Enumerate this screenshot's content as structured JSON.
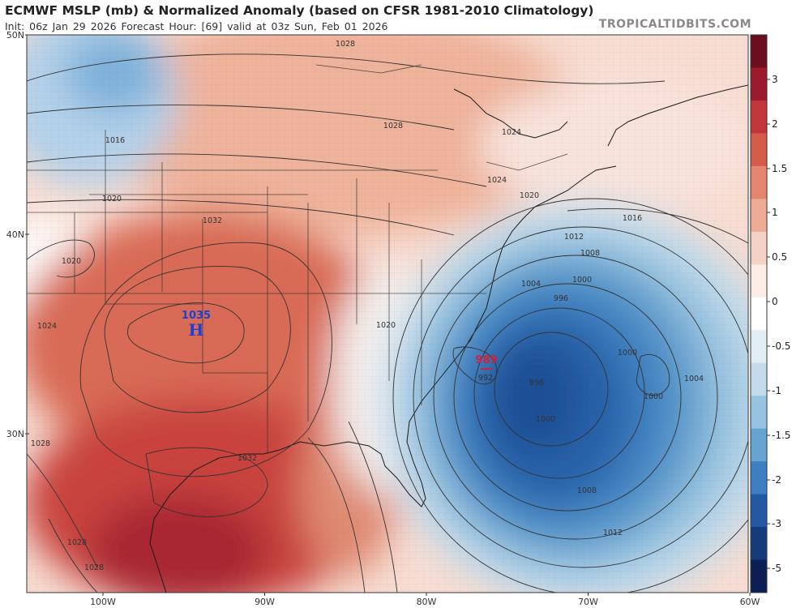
{
  "header": {
    "title": "ECMWF MSLP (mb) & Normalized Anomaly (based on CFSR 1981-2010 Climatology)",
    "subtitle": "Init: 06z Jan 29 2026   Forecast Hour: [69]   valid at 03z Sun, Feb 01 2026",
    "brand": "TROPICALTIDBITS.COM"
  },
  "axes": {
    "lat_labels": [
      "50N",
      "40N",
      "30N"
    ],
    "lat_values": [
      50,
      40,
      30
    ],
    "lon_labels": [
      "100W",
      "90W",
      "80W",
      "70W",
      "60W"
    ],
    "lon_values": [
      -100,
      -90,
      -80,
      -70,
      -60
    ]
  },
  "colorbar": {
    "tick_labels": [
      "3",
      "2",
      "1.5",
      "1",
      "0.5",
      "0",
      "-0.5",
      "-1",
      "-1.5",
      "-2",
      "-3",
      "-5"
    ],
    "tick_values": [
      3,
      2,
      1.5,
      1,
      0.5,
      0,
      -0.5,
      -1,
      -1.5,
      -2,
      -3,
      -5
    ],
    "colors": [
      "#6b0e1e",
      "#9b1b2c",
      "#c0363a",
      "#d65c4a",
      "#e4866d",
      "#eeac95",
      "#f6d2c4",
      "#fbece5",
      "#ffffff",
      "#e2eef6",
      "#c2dcec",
      "#97c3e0",
      "#66a3d0",
      "#3d7fc0",
      "#2359a4",
      "#163b7a",
      "#0c1f55"
    ]
  },
  "pressure_centers": [
    {
      "type": "H",
      "value": "1035",
      "color": "#1c3fd6"
    },
    {
      "type": "L",
      "value": "989",
      "color": "#d0213a"
    }
  ],
  "isobar_labels": [
    "1028",
    "1028",
    "1016",
    "1020",
    "1020",
    "1024",
    "1032",
    "1028",
    "1024",
    "1024",
    "1020",
    "1016",
    "1012",
    "1008",
    "1004",
    "1000",
    "996",
    "992",
    "996",
    "1000",
    "1000",
    "1004",
    "1000",
    "1008",
    "1012",
    "1020",
    "1032",
    "1028",
    "1028"
  ]
}
